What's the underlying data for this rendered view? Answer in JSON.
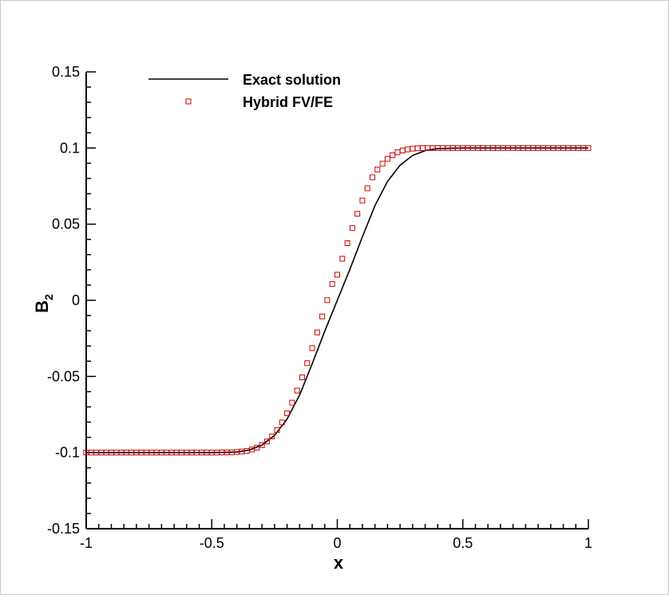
{
  "chart_data": {
    "type": "line",
    "xlabel": "x",
    "ylabel": "B",
    "ylabel_subscript": "2",
    "xlim": [
      -1,
      1
    ],
    "ylim": [
      -0.15,
      0.15
    ],
    "x_ticks": [
      "-1",
      "-0.5",
      "0",
      "0.5",
      "1"
    ],
    "y_ticks": [
      "0.15",
      "0.1",
      "0.05",
      "0",
      "-0.05",
      "-0.1",
      "-0.15"
    ],
    "grid": false,
    "legend_position": "top-left",
    "series": [
      {
        "name": "Exact solution",
        "style": "line",
        "color": "#000000",
        "x": [
          -1,
          -0.5,
          -0.45,
          -0.4,
          -0.35,
          -0.3,
          -0.25,
          -0.2,
          -0.15,
          -0.1,
          -0.05,
          0,
          0.05,
          0.1,
          0.15,
          0.2,
          0.25,
          0.3,
          0.35,
          0.4,
          0.45,
          0.5,
          1
        ],
        "y": [
          -0.1,
          -0.1,
          -0.0999,
          -0.0996,
          -0.0983,
          -0.0951,
          -0.0887,
          -0.078,
          -0.0622,
          -0.0417,
          -0.0203,
          0,
          0.0203,
          0.0417,
          0.0622,
          0.078,
          0.0887,
          0.0951,
          0.0983,
          0.0996,
          0.0999,
          0.1,
          0.1
        ]
      },
      {
        "name": "Hybrid FV/FE",
        "style": "square-markers",
        "color": "#cc0000",
        "x": [
          -1,
          -0.98,
          -0.96,
          -0.94,
          -0.92,
          -0.9,
          -0.88,
          -0.86,
          -0.84,
          -0.82,
          -0.8,
          -0.78,
          -0.76,
          -0.74,
          -0.72,
          -0.7,
          -0.68,
          -0.66,
          -0.64,
          -0.62,
          -0.6,
          -0.58,
          -0.56,
          -0.54,
          -0.52,
          -0.5,
          -0.48,
          -0.46,
          -0.44,
          -0.42,
          -0.4,
          -0.38,
          -0.36,
          -0.34,
          -0.32,
          -0.3,
          -0.28,
          -0.26,
          -0.24,
          -0.22,
          -0.2,
          -0.18,
          -0.16,
          -0.14,
          -0.12,
          -0.1,
          -0.08,
          -0.06,
          -0.04,
          -0.02,
          0,
          0.02,
          0.04,
          0.06,
          0.08,
          0.1,
          0.12,
          0.14,
          0.16,
          0.18,
          0.2,
          0.22,
          0.24,
          0.26,
          0.28,
          0.3,
          0.32,
          0.34,
          0.36,
          0.38,
          0.4,
          0.42,
          0.44,
          0.46,
          0.48,
          0.5,
          0.52,
          0.54,
          0.56,
          0.58,
          0.6,
          0.62,
          0.64,
          0.66,
          0.68,
          0.7,
          0.72,
          0.74,
          0.76,
          0.78,
          0.8,
          0.82,
          0.84,
          0.86,
          0.88,
          0.9,
          0.92,
          0.94,
          0.96,
          0.98,
          1
        ],
        "y": [
          -0.1,
          -0.1,
          -0.1,
          -0.1,
          -0.1,
          -0.1,
          -0.1,
          -0.1,
          -0.1,
          -0.1,
          -0.1,
          -0.1,
          -0.1,
          -0.1,
          -0.1,
          -0.1,
          -0.1,
          -0.1,
          -0.1,
          -0.1,
          -0.1,
          -0.1,
          -0.1,
          -0.1,
          -0.1,
          -0.1,
          -0.1,
          -0.0999,
          -0.0999,
          -0.0998,
          -0.0996,
          -0.0993,
          -0.0989,
          -0.098,
          -0.0968,
          -0.0951,
          -0.0927,
          -0.0894,
          -0.0852,
          -0.0802,
          -0.0742,
          -0.0672,
          -0.0593,
          -0.0506,
          -0.0413,
          -0.0314,
          -0.0211,
          -0.0106,
          0.0001,
          0.0107,
          0.0168,
          0.0273,
          0.0375,
          0.0474,
          0.0568,
          0.0655,
          0.0735,
          0.0808,
          0.0859,
          0.0897,
          0.0929,
          0.0953,
          0.0972,
          0.0984,
          0.0991,
          0.0996,
          0.0998,
          0.0999,
          0.1,
          0.1,
          0.1,
          0.1,
          0.1,
          0.1,
          0.1,
          0.1,
          0.1,
          0.1,
          0.1,
          0.1,
          0.1,
          0.1,
          0.1,
          0.1,
          0.1,
          0.1,
          0.1,
          0.1,
          0.1,
          0.1,
          0.1,
          0.1,
          0.1,
          0.1,
          0.1,
          0.1,
          0.1,
          0.1,
          0.1,
          0.1,
          0.1
        ]
      }
    ]
  }
}
